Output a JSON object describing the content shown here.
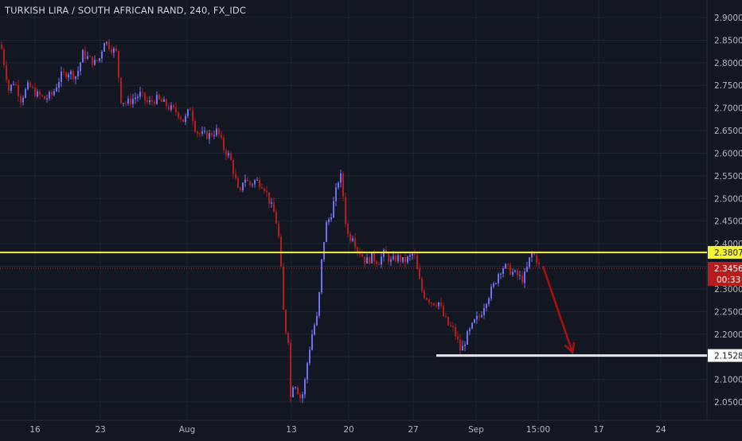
{
  "header": {
    "title": "TURKISH LIRA / SOUTH AFRICAN RAND, 240, FX_IDC"
  },
  "colors": {
    "background": "#131722",
    "grid": "#1f2635",
    "axis_text": "#b2b5be",
    "up": "#6f6ff2",
    "down": "#b71c1c",
    "wick": "#9b1c1c",
    "resistance": "#f5f531",
    "support": "#e8e8ec",
    "last_price": "#b71c1c",
    "arrow": "#b00d0d"
  },
  "chart_data": {
    "type": "candlestick",
    "symbol": "TURKISH LIRA / SOUTH AFRICAN RAND",
    "interval": "240",
    "source": "FX_IDC",
    "ylim": [
      2.02,
      2.92
    ],
    "y_ticks": [
      "2.9000",
      "2.8500",
      "2.8000",
      "2.7500",
      "2.7000",
      "2.6500",
      "2.6000",
      "2.5500",
      "2.5000",
      "2.4500",
      "2.4000",
      "2.3500",
      "2.3000",
      "2.2500",
      "2.2000",
      "2.1500",
      "2.1000",
      "2.0500"
    ],
    "x_ticks": [
      "16",
      "23",
      "Aug",
      "13",
      "20",
      "27",
      "Sep",
      "15:00",
      "17",
      "24"
    ],
    "grid": true,
    "price_path": [
      {
        "t": 0,
        "v": 2.84
      },
      {
        "t": 5,
        "v": 2.79
      },
      {
        "t": 10,
        "v": 2.74
      },
      {
        "t": 17,
        "v": 2.76
      },
      {
        "t": 25,
        "v": 2.72
      },
      {
        "t": 35,
        "v": 2.75
      },
      {
        "t": 45,
        "v": 2.73
      },
      {
        "t": 55,
        "v": 2.72
      },
      {
        "t": 65,
        "v": 2.73
      },
      {
        "t": 75,
        "v": 2.77
      },
      {
        "t": 85,
        "v": 2.78
      },
      {
        "t": 95,
        "v": 2.77
      },
      {
        "t": 103,
        "v": 2.82
      },
      {
        "t": 110,
        "v": 2.81
      },
      {
        "t": 118,
        "v": 2.8
      },
      {
        "t": 124,
        "v": 2.81
      },
      {
        "t": 130,
        "v": 2.85
      },
      {
        "t": 140,
        "v": 2.83
      },
      {
        "t": 146,
        "v": 2.82
      },
      {
        "t": 150,
        "v": 2.72
      },
      {
        "t": 158,
        "v": 2.71
      },
      {
        "t": 166,
        "v": 2.72
      },
      {
        "t": 175,
        "v": 2.73
      },
      {
        "t": 185,
        "v": 2.71
      },
      {
        "t": 195,
        "v": 2.72
      },
      {
        "t": 205,
        "v": 2.71
      },
      {
        "t": 212,
        "v": 2.7
      },
      {
        "t": 222,
        "v": 2.69
      },
      {
        "t": 230,
        "v": 2.67
      },
      {
        "t": 238,
        "v": 2.7
      },
      {
        "t": 245,
        "v": 2.65
      },
      {
        "t": 252,
        "v": 2.64
      },
      {
        "t": 262,
        "v": 2.64
      },
      {
        "t": 272,
        "v": 2.65
      },
      {
        "t": 280,
        "v": 2.61
      },
      {
        "t": 288,
        "v": 2.59
      },
      {
        "t": 295,
        "v": 2.54
      },
      {
        "t": 300,
        "v": 2.5
      },
      {
        "t": 305,
        "v": 2.55
      },
      {
        "t": 312,
        "v": 2.53
      },
      {
        "t": 320,
        "v": 2.54
      },
      {
        "t": 330,
        "v": 2.53
      },
      {
        "t": 338,
        "v": 2.49
      },
      {
        "t": 345,
        "v": 2.46
      },
      {
        "t": 350,
        "v": 2.4
      },
      {
        "t": 356,
        "v": 2.22
      },
      {
        "t": 361,
        "v": 2.19
      },
      {
        "t": 364,
        "v": 2.06
      },
      {
        "t": 368,
        "v": 2.1
      },
      {
        "t": 372,
        "v": 2.08
      },
      {
        "t": 376,
        "v": 2.06
      },
      {
        "t": 380,
        "v": 2.07
      },
      {
        "t": 386,
        "v": 2.15
      },
      {
        "t": 392,
        "v": 2.21
      },
      {
        "t": 398,
        "v": 2.24
      },
      {
        "t": 403,
        "v": 2.36
      },
      {
        "t": 408,
        "v": 2.44
      },
      {
        "t": 414,
        "v": 2.46
      },
      {
        "t": 418,
        "v": 2.49
      },
      {
        "t": 424,
        "v": 2.54
      },
      {
        "t": 428,
        "v": 2.55
      },
      {
        "t": 432,
        "v": 2.46
      },
      {
        "t": 437,
        "v": 2.41
      },
      {
        "t": 442,
        "v": 2.42
      },
      {
        "t": 447,
        "v": 2.39
      },
      {
        "t": 452,
        "v": 2.38
      },
      {
        "t": 458,
        "v": 2.36
      },
      {
        "t": 466,
        "v": 2.37
      },
      {
        "t": 474,
        "v": 2.36
      },
      {
        "t": 482,
        "v": 2.38
      },
      {
        "t": 490,
        "v": 2.36
      },
      {
        "t": 498,
        "v": 2.37
      },
      {
        "t": 506,
        "v": 2.36
      },
      {
        "t": 514,
        "v": 2.37
      },
      {
        "t": 519,
        "v": 2.38
      },
      {
        "t": 524,
        "v": 2.33
      },
      {
        "t": 530,
        "v": 2.29
      },
      {
        "t": 536,
        "v": 2.28
      },
      {
        "t": 542,
        "v": 2.27
      },
      {
        "t": 550,
        "v": 2.27
      },
      {
        "t": 556,
        "v": 2.24
      },
      {
        "t": 562,
        "v": 2.22
      },
      {
        "t": 568,
        "v": 2.21
      },
      {
        "t": 573,
        "v": 2.19
      },
      {
        "t": 578,
        "v": 2.16
      },
      {
        "t": 584,
        "v": 2.19
      },
      {
        "t": 590,
        "v": 2.21
      },
      {
        "t": 596,
        "v": 2.23
      },
      {
        "t": 602,
        "v": 2.24
      },
      {
        "t": 608,
        "v": 2.27
      },
      {
        "t": 614,
        "v": 2.29
      },
      {
        "t": 620,
        "v": 2.31
      },
      {
        "t": 626,
        "v": 2.34
      },
      {
        "t": 632,
        "v": 2.35
      },
      {
        "t": 640,
        "v": 2.34
      },
      {
        "t": 648,
        "v": 2.33
      },
      {
        "t": 656,
        "v": 2.32
      },
      {
        "t": 662,
        "v": 2.35
      },
      {
        "t": 666,
        "v": 2.38
      },
      {
        "t": 672,
        "v": 2.37
      },
      {
        "t": 677,
        "v": 2.3456
      }
    ],
    "horizontal_levels": [
      {
        "price": 2.3807,
        "label": "2.3807",
        "style": "resistance"
      },
      {
        "price": 2.1528,
        "label": "2.1528",
        "style": "support"
      }
    ],
    "last_price": {
      "value": 2.3456,
      "label": "2.3456",
      "countdown": "00:33"
    },
    "annotations": [
      {
        "type": "arrow",
        "from": {
          "t": 682,
          "v": 2.35
        },
        "to": {
          "t": 719,
          "v": 2.16
        },
        "color": "#b00d0d"
      }
    ]
  }
}
